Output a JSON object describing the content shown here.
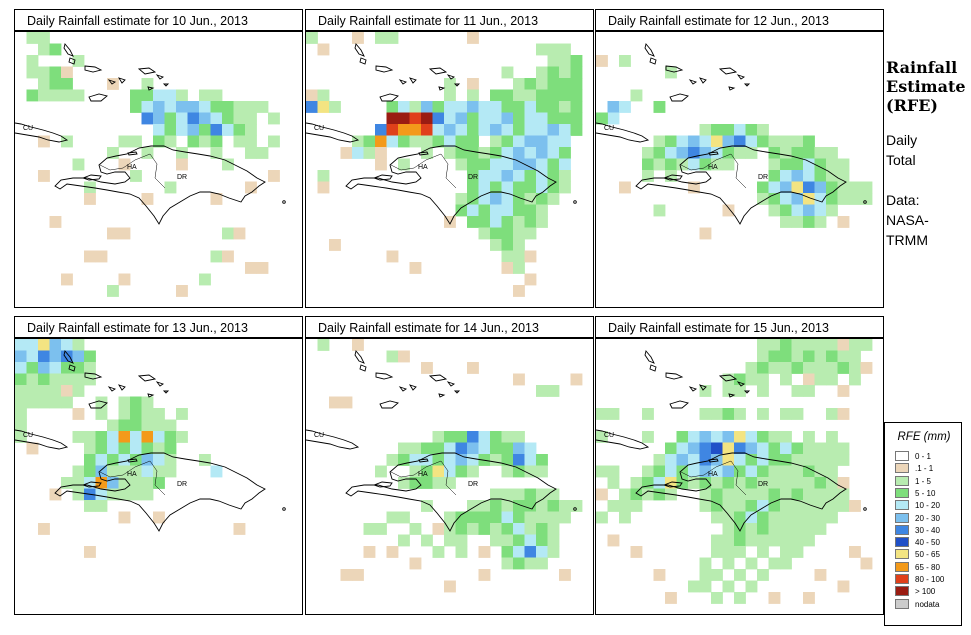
{
  "panels": [
    {
      "title": "Daily Rainfall estimate for  10 Jun., 2013"
    },
    {
      "title": "Daily Rainfall estimate for  11 Jun., 2013"
    },
    {
      "title": "Daily Rainfall estimate for  12 Jun., 2013"
    },
    {
      "title": "Daily Rainfall estimate for  13 Jun., 2013"
    },
    {
      "title": "Daily Rainfall estimate for  14 Jun., 2013"
    },
    {
      "title": "Daily Rainfall estimate for  15 Jun., 2013"
    }
  ],
  "places": {
    "cuba": "CU",
    "haiti": "HA",
    "dominican_republic": "DR"
  },
  "sidebar": {
    "title_line1": "Rainfall",
    "title_line2": "Estimate",
    "title_line3": "(RFE)",
    "period_line1": "Daily",
    "period_line2": "Total",
    "data_line1": "Data:",
    "data_line2": "NASA-",
    "data_line3": "TRMM"
  },
  "legend": {
    "title": "RFE (mm)",
    "items": [
      {
        "label": "0 - 1",
        "color": "#ffffff"
      },
      {
        "label": ".1 - 1",
        "color": "#ecd6b9"
      },
      {
        "label": "1 - 5",
        "color": "#b8ecb0"
      },
      {
        "label": "5 - 10",
        "color": "#7ede7c"
      },
      {
        "label": "10 - 20",
        "color": "#b4e9f5"
      },
      {
        "label": "20 - 30",
        "color": "#7cc0ee"
      },
      {
        "label": "30 - 40",
        "color": "#3f86e2"
      },
      {
        "label": "40 - 50",
        "color": "#2050c8"
      },
      {
        "label": "50 - 65",
        "color": "#f3e482"
      },
      {
        "label": "65 - 80",
        "color": "#f39a1a"
      },
      {
        "label": "80 - 100",
        "color": "#e0401a"
      },
      {
        "label": "> 100",
        "color": "#9a1c12"
      },
      {
        "label": "nodata",
        "color": "#cccccc"
      }
    ]
  }
}
